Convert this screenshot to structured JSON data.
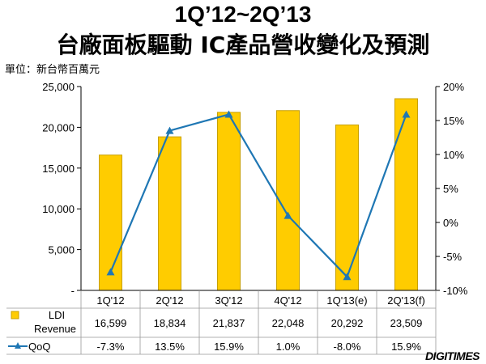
{
  "title_line1": "1Q’12~2Q’13",
  "title_line2": "台廠面板驅動 IC產品營收變化及預測",
  "unit_label": "單位：新台幣百萬元",
  "logo_text": "DIGITIMES",
  "colors": {
    "bar": "#FFCC00",
    "bar_border": "#C8A000",
    "line": "#1F77B4",
    "axis": "#000000"
  },
  "chart_data": {
    "type": "bar",
    "categories": [
      "1Q'12",
      "2Q'12",
      "3Q'12",
      "4Q'12",
      "1Q'13(e)",
      "2Q'13(f)"
    ],
    "series": [
      {
        "name": "LDI Revenue",
        "type": "bar",
        "axis": "left",
        "values": [
          16599,
          18834,
          21837,
          22048,
          20292,
          23509
        ],
        "labels": [
          "16,599",
          "18,834",
          "21,837",
          "22,048",
          "20,292",
          "23,509"
        ]
      },
      {
        "name": "QoQ",
        "type": "line",
        "axis": "right",
        "values": [
          -7.3,
          13.5,
          15.9,
          1.0,
          -8.0,
          15.9
        ],
        "labels": [
          "-7.3%",
          "13.5%",
          "15.9%",
          "1.0%",
          "-8.0%",
          "15.9%"
        ]
      }
    ],
    "left_axis": {
      "min": 0,
      "max": 25000,
      "ticks": [
        "-",
        "5,000",
        "10,000",
        "15,000",
        "20,000",
        "25,000"
      ]
    },
    "right_axis": {
      "min": -10,
      "max": 20,
      "ticks": [
        "-10%",
        "-5%",
        "0%",
        "5%",
        "10%",
        "15%",
        "20%"
      ]
    },
    "legend_placement": "data-table-below"
  }
}
